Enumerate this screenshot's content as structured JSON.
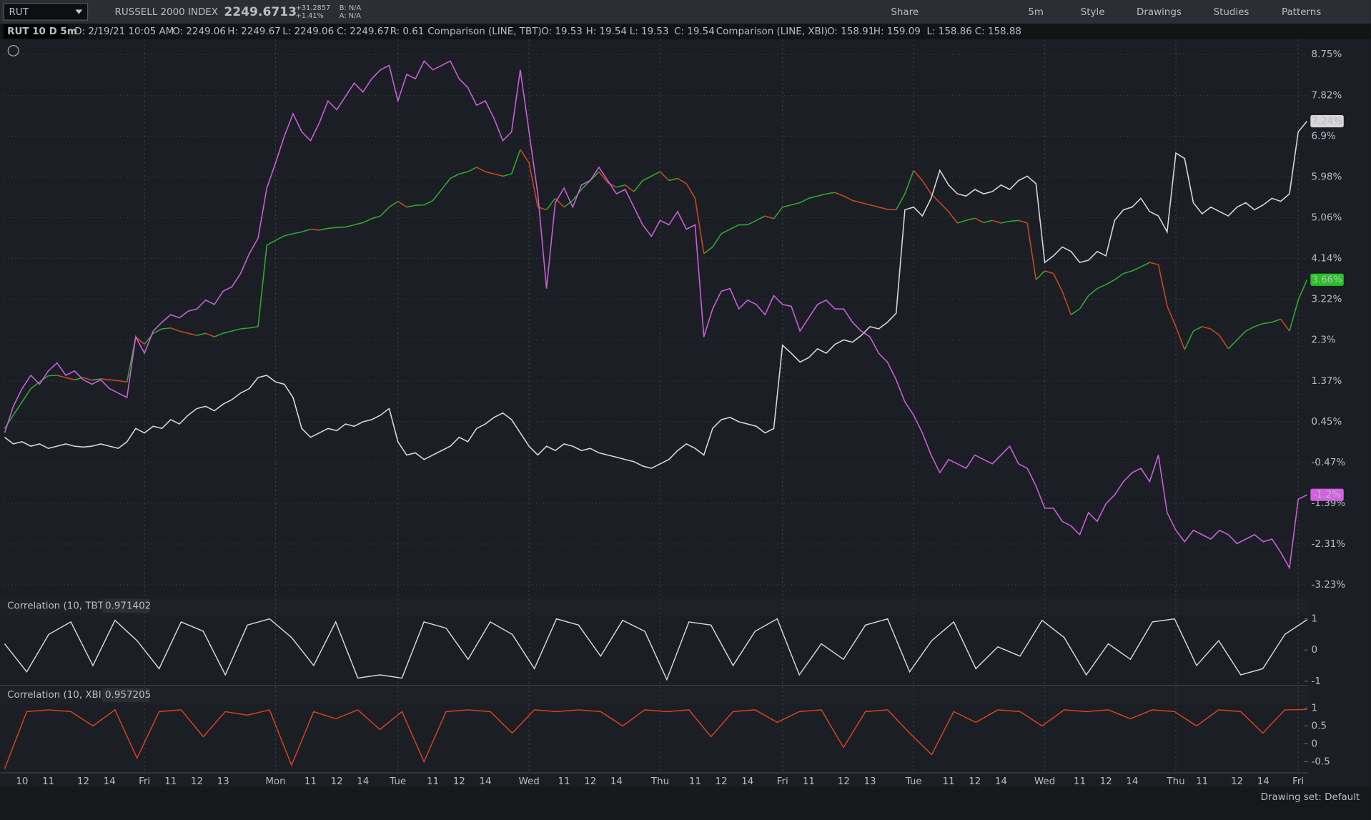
{
  "toolbar": {
    "symbol": "RUT",
    "description": "RUSSELL 2000 INDEX",
    "last": "2249.6713",
    "change": "+31.2857",
    "change_pct": "+1.41%",
    "bid": "B: N/A",
    "ask": "A: N/A",
    "buttons": [
      "Share",
      "5m",
      "Style",
      "Drawings",
      "Studies",
      "Patterns"
    ]
  },
  "info_bar": {
    "chart": "RUT 10 D 5m",
    "date": "D: 2/19/21 10:05 AM",
    "rut": [
      "O: 2249.06",
      "H: 2249.67",
      "L: 2249.06",
      "C: 2249.67",
      "R: 0.61"
    ],
    "tbt_label": "Comparison (LINE, TBT)",
    "tbt": [
      "O: 19.53",
      "H: 19.54",
      "L: 19.53",
      "C: 19.54"
    ],
    "xbi_label": "Comparison (LINE, XBI)",
    "xbi": [
      "O: 158.91",
      "H: 159.09",
      "L: 158.86",
      "C: 158.88"
    ]
  },
  "footer": {
    "drawing_set": "Drawing set: Default"
  },
  "chart_data": [
    {
      "type": "line",
      "grid": true,
      "categories": [
        null,
        null,
        "10",
        null,
        null,
        "11",
        null,
        null,
        null,
        "12",
        null,
        null,
        "14",
        null,
        null,
        null,
        "Fri",
        null,
        null,
        "11",
        null,
        null,
        "12",
        null,
        null,
        "13",
        null,
        null,
        null,
        null,
        null,
        "Mon",
        null,
        null,
        null,
        "11",
        null,
        null,
        "12",
        null,
        null,
        "14",
        null,
        null,
        null,
        "Tue",
        null,
        null,
        null,
        "11",
        null,
        null,
        "12",
        null,
        null,
        "14",
        null,
        null,
        null,
        null,
        "Wed",
        null,
        null,
        null,
        "11",
        null,
        null,
        "12",
        null,
        null,
        "14",
        null,
        null,
        null,
        null,
        "Thu",
        null,
        null,
        null,
        "11",
        null,
        null,
        "12",
        null,
        null,
        "14",
        null,
        null,
        null,
        "Fri",
        null,
        null,
        "11",
        null,
        null,
        null,
        "12",
        null,
        null,
        "13",
        null,
        null,
        null,
        null,
        "Tue",
        null,
        null,
        null,
        "11",
        null,
        null,
        "12",
        null,
        null,
        "14",
        null,
        null,
        null,
        null,
        "Wed",
        null,
        null,
        null,
        "11",
        null,
        null,
        "12",
        null,
        null,
        "14",
        null,
        null,
        null,
        null,
        "Thu",
        null,
        null,
        "11",
        null,
        null,
        null,
        "12",
        null,
        null,
        "14",
        null,
        null,
        null,
        "Fri",
        null
      ],
      "ylim": [
        -3.45,
        9.09
      ],
      "yticks": [
        {
          "value": 8.75,
          "label": "8.75%"
        },
        {
          "value": 7.82,
          "label": "7.82%"
        },
        {
          "value": 6.9,
          "label": "6.9%"
        },
        {
          "value": 5.98,
          "label": "5.98%"
        },
        {
          "value": 5.06,
          "label": "5.06%"
        },
        {
          "value": 4.14,
          "label": "4.14%"
        },
        {
          "value": 3.22,
          "label": "3.22%"
        },
        {
          "value": 2.3,
          "label": "2.3%"
        },
        {
          "value": 1.37,
          "label": "1.37%"
        },
        {
          "value": 0.45,
          "label": "0.45%"
        },
        {
          "value": -0.47,
          "label": "-0.47%"
        },
        {
          "value": -1.39,
          "label": "-1.39%"
        },
        {
          "value": -2.31,
          "label": "-2.31%"
        },
        {
          "value": -3.23,
          "label": "-3.23%"
        }
      ],
      "series": [
        {
          "color": "#2fa82f",
          "down_color": "#c9471f",
          "values": [
            0.3,
            0.6,
            0.9,
            1.2,
            1.35,
            1.49,
            1.5,
            1.45,
            1.4,
            1.45,
            1.39,
            1.42,
            1.4,
            1.38,
            1.35,
            2.37,
            2.2,
            2.45,
            2.55,
            2.57,
            2.5,
            2.45,
            2.4,
            2.45,
            2.37,
            2.45,
            2.5,
            2.55,
            2.57,
            2.6,
            4.44,
            4.55,
            4.65,
            4.7,
            4.74,
            4.8,
            4.78,
            4.82,
            4.84,
            4.85,
            4.9,
            4.95,
            5.04,
            5.1,
            5.3,
            5.43,
            5.3,
            5.34,
            5.35,
            5.45,
            5.7,
            5.95,
            6.05,
            6.1,
            6.2,
            6.1,
            6.05,
            6.0,
            6.05,
            6.6,
            6.3,
            5.3,
            5.24,
            5.5,
            5.3,
            5.45,
            5.7,
            5.9,
            6.1,
            5.85,
            5.75,
            5.8,
            5.65,
            5.9,
            6.0,
            6.1,
            5.9,
            5.95,
            5.83,
            5.5,
            4.25,
            4.4,
            4.7,
            4.8,
            4.9,
            4.9,
            5.0,
            5.1,
            5.04,
            5.3,
            5.35,
            5.4,
            5.5,
            5.55,
            5.6,
            5.63,
            5.55,
            5.45,
            5.4,
            5.35,
            5.3,
            5.25,
            5.24,
            5.6,
            6.13,
            5.9,
            5.6,
            5.4,
            5.2,
            4.94,
            5.0,
            5.05,
            4.95,
            5.0,
            4.94,
            4.98,
            5.0,
            4.94,
            3.66,
            3.86,
            3.8,
            3.4,
            2.87,
            3.0,
            3.3,
            3.46,
            3.55,
            3.66,
            3.8,
            3.86,
            3.95,
            4.05,
            4.0,
            3.07,
            2.6,
            2.08,
            2.5,
            2.6,
            2.55,
            2.4,
            2.1,
            2.3,
            2.5,
            2.6,
            2.67,
            2.7,
            2.77,
            2.5,
            3.2,
            3.66
          ]
        },
        {
          "color": "#d6d6d6",
          "values": [
            0.1,
            -0.05,
            0.0,
            -0.1,
            -0.05,
            -0.15,
            -0.1,
            -0.05,
            -0.1,
            -0.12,
            -0.1,
            -0.05,
            -0.1,
            -0.15,
            0.0,
            0.3,
            0.2,
            0.35,
            0.3,
            0.5,
            0.4,
            0.6,
            0.75,
            0.8,
            0.7,
            0.85,
            0.95,
            1.1,
            1.2,
            1.45,
            1.5,
            1.35,
            1.3,
            1.0,
            0.3,
            0.1,
            0.2,
            0.3,
            0.25,
            0.4,
            0.35,
            0.45,
            0.5,
            0.6,
            0.75,
            0.0,
            -0.3,
            -0.25,
            -0.4,
            -0.3,
            -0.2,
            -0.1,
            0.1,
            0.0,
            0.3,
            0.4,
            0.55,
            0.65,
            0.5,
            0.2,
            -0.1,
            -0.3,
            -0.1,
            -0.2,
            -0.05,
            -0.1,
            -0.2,
            -0.15,
            -0.25,
            -0.3,
            -0.35,
            -0.4,
            -0.45,
            -0.55,
            -0.6,
            -0.5,
            -0.4,
            -0.2,
            -0.05,
            -0.15,
            -0.3,
            0.3,
            0.5,
            0.55,
            0.45,
            0.4,
            0.35,
            0.2,
            0.3,
            2.18,
            2.0,
            1.8,
            1.9,
            2.1,
            2.0,
            2.2,
            2.3,
            2.25,
            2.4,
            2.6,
            2.55,
            2.7,
            2.9,
            5.24,
            5.3,
            5.1,
            5.5,
            6.13,
            5.8,
            5.6,
            5.55,
            5.7,
            5.6,
            5.65,
            5.8,
            5.7,
            5.9,
            6.0,
            5.83,
            4.05,
            4.2,
            4.4,
            4.3,
            4.05,
            4.1,
            4.3,
            4.2,
            5.0,
            5.24,
            5.3,
            5.5,
            5.2,
            5.1,
            4.74,
            6.52,
            6.4,
            5.4,
            5.15,
            5.3,
            5.2,
            5.1,
            5.3,
            5.4,
            5.24,
            5.35,
            5.5,
            5.43,
            5.6,
            7.0,
            7.24
          ]
        },
        {
          "color": "#c760d6",
          "values": [
            0.2,
            0.8,
            1.2,
            1.5,
            1.3,
            1.6,
            1.78,
            1.5,
            1.6,
            1.4,
            1.3,
            1.4,
            1.2,
            1.1,
            1.0,
            2.37,
            2.0,
            2.5,
            2.7,
            2.87,
            2.8,
            2.95,
            3.0,
            3.2,
            3.1,
            3.4,
            3.5,
            3.8,
            4.25,
            4.6,
            5.73,
            6.3,
            6.9,
            7.41,
            7.0,
            6.8,
            7.2,
            7.7,
            7.5,
            7.8,
            8.1,
            7.9,
            8.2,
            8.4,
            8.5,
            7.7,
            8.3,
            8.2,
            8.6,
            8.4,
            8.5,
            8.6,
            8.2,
            8.0,
            7.6,
            7.7,
            7.3,
            6.8,
            7.0,
            8.4,
            7.0,
            5.6,
            3.46,
            5.4,
            5.73,
            5.3,
            5.8,
            5.9,
            6.2,
            5.9,
            5.6,
            5.7,
            5.3,
            4.9,
            4.64,
            5.0,
            4.9,
            5.2,
            4.8,
            4.9,
            2.37,
            3.0,
            3.4,
            3.46,
            3.0,
            3.2,
            3.1,
            2.87,
            3.3,
            3.1,
            3.06,
            2.5,
            2.8,
            3.1,
            3.2,
            3.0,
            3.0,
            2.7,
            2.5,
            2.37,
            2.0,
            1.8,
            1.4,
            0.9,
            0.6,
            0.2,
            -0.3,
            -0.7,
            -0.4,
            -0.5,
            -0.6,
            -0.3,
            -0.4,
            -0.5,
            -0.3,
            -0.1,
            -0.5,
            -0.6,
            -1.0,
            -1.5,
            -1.5,
            -1.8,
            -1.9,
            -2.1,
            -1.6,
            -1.8,
            -1.4,
            -1.2,
            -0.9,
            -0.7,
            -0.6,
            -0.9,
            -0.3,
            -1.6,
            -2.0,
            -2.26,
            -2.0,
            -2.1,
            -2.2,
            -2.0,
            -2.1,
            -2.3,
            -2.2,
            -2.1,
            -2.26,
            -2.2,
            -2.5,
            -2.85,
            -1.3,
            -1.2
          ]
        }
      ],
      "price_tags": [
        {
          "value": 7.24,
          "label": "7.24%",
          "color": "#d6d6d6"
        },
        {
          "value": 3.66,
          "label": "3.66%",
          "color": "#27c227"
        },
        {
          "value": -1.2,
          "label": "-1.2%",
          "color": "#d65ee0"
        }
      ]
    },
    {
      "type": "line",
      "title": "Correlation (10, TBT)",
      "value_label": "0.971402",
      "color": "#d6d6d6",
      "ylim": [
        -1.08,
        1.08
      ],
      "yticks": [
        1,
        0,
        -1
      ],
      "values": [
        0.2,
        -0.7,
        0.5,
        0.9,
        -0.5,
        0.95,
        0.3,
        -0.6,
        0.9,
        0.6,
        -0.8,
        0.8,
        1,
        0.4,
        -0.5,
        0.9,
        -0.9,
        -0.8,
        -0.9,
        0.9,
        0.7,
        -0.3,
        0.9,
        0.5,
        -0.6,
        1,
        0.8,
        -0.2,
        0.95,
        0.6,
        -0.95,
        0.9,
        0.8,
        -0.5,
        0.6,
        1,
        -0.8,
        0.2,
        -0.3,
        0.8,
        1,
        -0.7,
        0.3,
        0.9,
        -0.6,
        0.1,
        -0.2,
        0.95,
        0.4,
        -0.8,
        0.2,
        -0.3,
        0.9,
        1,
        -0.5,
        0.3,
        -0.8,
        -0.6,
        0.5,
        0.97
      ]
    },
    {
      "type": "line",
      "title": "Correlation (10, XBI)",
      "value_label": "0.957205",
      "color": "#d9431c",
      "ylim": [
        -0.76,
        1.12
      ],
      "yticks": [
        1,
        0.5,
        0,
        -0.5
      ],
      "values": [
        -0.7,
        0.9,
        0.95,
        0.9,
        0.5,
        0.95,
        -0.4,
        0.9,
        0.95,
        0.2,
        0.9,
        0.8,
        0.95,
        -0.6,
        0.9,
        0.7,
        0.95,
        0.4,
        0.9,
        -0.5,
        0.9,
        0.95,
        0.9,
        0.3,
        0.95,
        0.9,
        0.95,
        0.9,
        0.5,
        0.95,
        0.9,
        0.95,
        0.2,
        0.9,
        0.95,
        0.6,
        0.9,
        0.95,
        -0.1,
        0.9,
        0.95,
        0.3,
        -0.3,
        0.9,
        0.6,
        0.95,
        0.9,
        0.5,
        0.95,
        0.9,
        0.95,
        0.7,
        0.95,
        0.9,
        0.5,
        0.95,
        0.9,
        0.3,
        0.95,
        0.96
      ]
    }
  ]
}
